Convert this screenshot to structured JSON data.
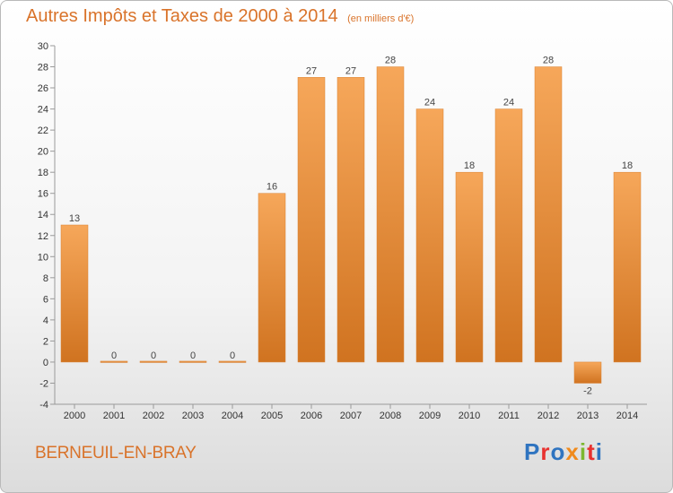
{
  "title": "Autres Impôts et Taxes de 2000 à 2014",
  "unit": "(en milliers d'€)",
  "commune": "BERNEUIL-EN-BRAY",
  "brand": {
    "text": "Proxiti",
    "letter_colors": [
      "#2f74c0",
      "#e8312f",
      "#2f74c0",
      "#f08a1c",
      "#7cb82f",
      "#e8312f",
      "#2f74c0"
    ]
  },
  "colors": {
    "bar_light": "#f6a75a",
    "bar_dark": "#d07320",
    "accent": "#d9732a"
  },
  "chart_data": {
    "type": "bar",
    "title": "Autres Impôts et Taxes de 2000 à 2014",
    "subtitle": "(en milliers d'€)",
    "categories": [
      "2000",
      "2001",
      "2002",
      "2003",
      "2004",
      "2005",
      "2006",
      "2007",
      "2008",
      "2009",
      "2010",
      "2011",
      "2012",
      "2013",
      "2014"
    ],
    "values": [
      13,
      0,
      0,
      0,
      0,
      16,
      27,
      27,
      28,
      24,
      18,
      24,
      28,
      -2,
      18
    ],
    "ylim": [
      -4,
      30
    ],
    "yticks": [
      -4,
      -2,
      0,
      2,
      4,
      6,
      8,
      10,
      12,
      14,
      16,
      18,
      20,
      22,
      24,
      26,
      28,
      30
    ],
    "grid": false,
    "legend": "none"
  }
}
